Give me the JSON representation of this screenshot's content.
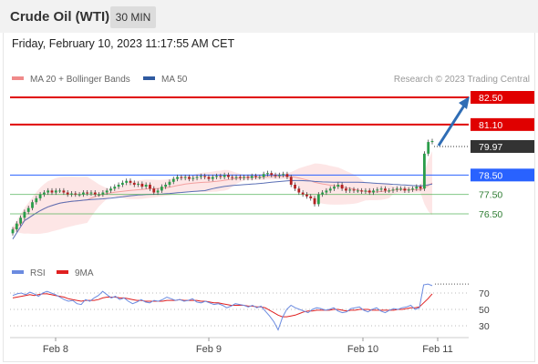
{
  "header": {
    "title": "Crude Oil (WTI)",
    "timeframe": "30 MIN"
  },
  "datetime": "Friday, February 10, 2023 11:17:55 AM CET",
  "colors": {
    "resistance": "#e00000",
    "support_pivot": "#2962ff",
    "support": "#4caf50",
    "candle_up": "#2a9d4a",
    "candle_down": "#b22222",
    "bollinger_fill": "#fde0e0",
    "ma50": "#5a6fb5",
    "rsi": "#6b8be0",
    "rsi_ma": "#e02020",
    "arrow": "#2f6db5",
    "current": "#333333"
  },
  "chart_data": [
    {
      "type": "candlestick",
      "legend": [
        {
          "name": "MA 20 + Bollinger Bands",
          "color": "#f08a8a"
        },
        {
          "name": "MA 50",
          "color": "#2f5aa0"
        }
      ],
      "credit": "Research © 2023 Trading Central",
      "levels": [
        {
          "value": 82.5,
          "label": "82.50",
          "kind": "resistance"
        },
        {
          "value": 81.1,
          "label": "81.10",
          "kind": "resistance"
        },
        {
          "value": 79.97,
          "label": "79.97",
          "kind": "current"
        },
        {
          "value": 78.5,
          "label": "78.50",
          "kind": "pivot"
        },
        {
          "value": 77.5,
          "label": "77.50",
          "kind": "support"
        },
        {
          "value": 76.5,
          "label": "76.50",
          "kind": "support"
        }
      ],
      "x_ticks": [
        "Feb 8",
        "Feb 9",
        "Feb 10",
        "Feb 11"
      ],
      "closes": [
        75.7,
        76.0,
        76.3,
        76.6,
        76.8,
        77.1,
        77.3,
        77.5,
        77.6,
        77.7,
        77.6,
        77.7,
        77.7,
        77.6,
        77.5,
        77.55,
        77.5,
        77.5,
        77.6,
        77.55,
        77.6,
        77.5,
        77.5,
        77.6,
        77.7,
        77.8,
        77.9,
        78.0,
        78.1,
        78.2,
        78.1,
        78.0,
        78.05,
        77.9,
        78.0,
        77.8,
        77.6,
        77.7,
        77.9,
        78.0,
        78.15,
        78.3,
        78.4,
        78.35,
        78.4,
        78.3,
        78.35,
        78.4,
        78.45,
        78.4,
        78.3,
        78.4,
        78.45,
        78.4,
        78.5,
        78.4,
        78.35,
        78.4,
        78.35,
        78.4,
        78.35,
        78.45,
        78.4,
        78.4,
        78.55,
        78.6,
        78.5,
        78.45,
        78.5,
        78.55,
        78.4,
        78.0,
        77.8,
        77.6,
        77.5,
        77.4,
        77.3,
        77.0,
        77.5,
        77.6,
        77.7,
        77.8,
        77.9,
        78.0,
        77.8,
        77.7,
        77.75,
        77.7,
        77.7,
        77.65,
        77.7,
        77.6,
        77.7,
        77.75,
        77.8,
        77.7,
        77.7,
        77.75,
        77.8,
        77.8,
        77.7,
        77.75,
        77.8,
        77.9,
        77.8,
        79.6,
        80.2,
        80.25
      ],
      "rsi": {
        "legend": [
          {
            "name": "RSI",
            "color": "#6b8be0"
          },
          {
            "name": "9MA",
            "color": "#e02020"
          }
        ],
        "ticks": [
          70,
          50,
          30
        ],
        "values": [
          67,
          69,
          70,
          68,
          71,
          69,
          66,
          70,
          72,
          70,
          68,
          65,
          62,
          60,
          61,
          57,
          56,
          62,
          60,
          64,
          67,
          72,
          68,
          64,
          66,
          62,
          64,
          60,
          57,
          59,
          62,
          59,
          58,
          61,
          60,
          62,
          65,
          63,
          61,
          62,
          60,
          61,
          63,
          59,
          58,
          60,
          58,
          56,
          57,
          55,
          52,
          54,
          57,
          56,
          55,
          53,
          55,
          52,
          54,
          48,
          42,
          35,
          25,
          40,
          50,
          55,
          52,
          50,
          48,
          46,
          50,
          52,
          51,
          49,
          50,
          52,
          48,
          46,
          47,
          51,
          52,
          53,
          49,
          47,
          50,
          52,
          48,
          46,
          49,
          51,
          50,
          52,
          53,
          55,
          50,
          52,
          80,
          81,
          79
        ],
        "ma": [
          64,
          65,
          66,
          67,
          68,
          67,
          68,
          69,
          69,
          68,
          67,
          66,
          65,
          63,
          62,
          61,
          60,
          61,
          61,
          61,
          62,
          64,
          65,
          65,
          65,
          64,
          64,
          63,
          62,
          61,
          61,
          60,
          60,
          60,
          60,
          60,
          61,
          61,
          61,
          62,
          61,
          61,
          61,
          61,
          60,
          60,
          59,
          58,
          58,
          57,
          56,
          55,
          55,
          55,
          55,
          54,
          54,
          53,
          53,
          52,
          49,
          46,
          43,
          41,
          41,
          42,
          43,
          45,
          47,
          48,
          48,
          49,
          49,
          49,
          49,
          50,
          50,
          49,
          48,
          49,
          49,
          50,
          50,
          50,
          49,
          49,
          49,
          49,
          49,
          49,
          50,
          50,
          51,
          52,
          52,
          53,
          58,
          63,
          69
        ]
      }
    }
  ]
}
